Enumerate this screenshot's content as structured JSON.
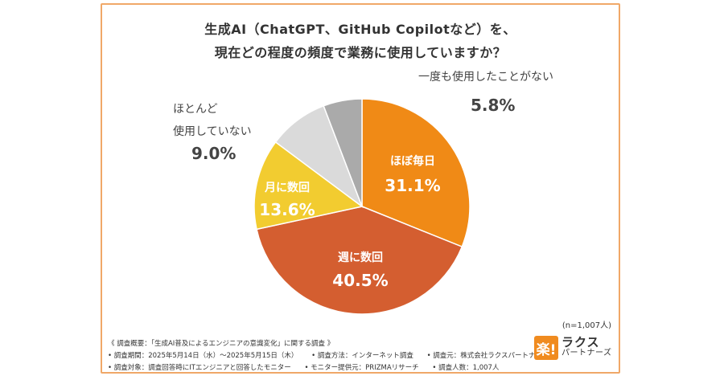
{
  "title_line1": "生成AI（ChatGPT、GitHub Copilotなど）を、",
  "title_line2": "現在どの程度の頻度で業務に使用していますか？",
  "chart_data": {
    "type": "pie",
    "unit": "%",
    "slices": [
      {
        "label": "ほぼ毎日",
        "value": 31.1,
        "value_text": "31.1%",
        "color": "#f08a16"
      },
      {
        "label": "週に数回",
        "value": 40.5,
        "value_text": "40.5%",
        "color": "#d45e30"
      },
      {
        "label": "月に数回",
        "value": 13.6,
        "value_text": "13.6%",
        "color": "#f2cc30"
      },
      {
        "label": "ほとんど使用していない",
        "label_lines": [
          "ほとんど",
          "使用していない"
        ],
        "value": 9.0,
        "value_text": "9.0%",
        "color": "#dadada"
      },
      {
        "label": "一度も使用したことがない",
        "value": 5.8,
        "value_text": "5.8%",
        "color": "#aaaaaa"
      }
    ]
  },
  "sample_note": "(n=1,007人)",
  "survey": {
    "overview": "《 調査概要：「生成AI普及によるエンジニアの意識変化」に関する調査 》",
    "period": "• 調査期間：2025年5月14日（水）〜2025年5月15日（木）",
    "method": "• 調査方法：インターネット調査",
    "source": "• 調査元：株式会社ラクスパートナーズ",
    "target": "• 調査対象：調査回答時にITエンジニアと回答したモニター",
    "provider": "• モニター提供元：PRIZMAリサーチ",
    "count": "• 調査人数：1,007人"
  },
  "logo": {
    "mark": "楽!",
    "name": "ラクス",
    "sub": "パートナーズ"
  }
}
